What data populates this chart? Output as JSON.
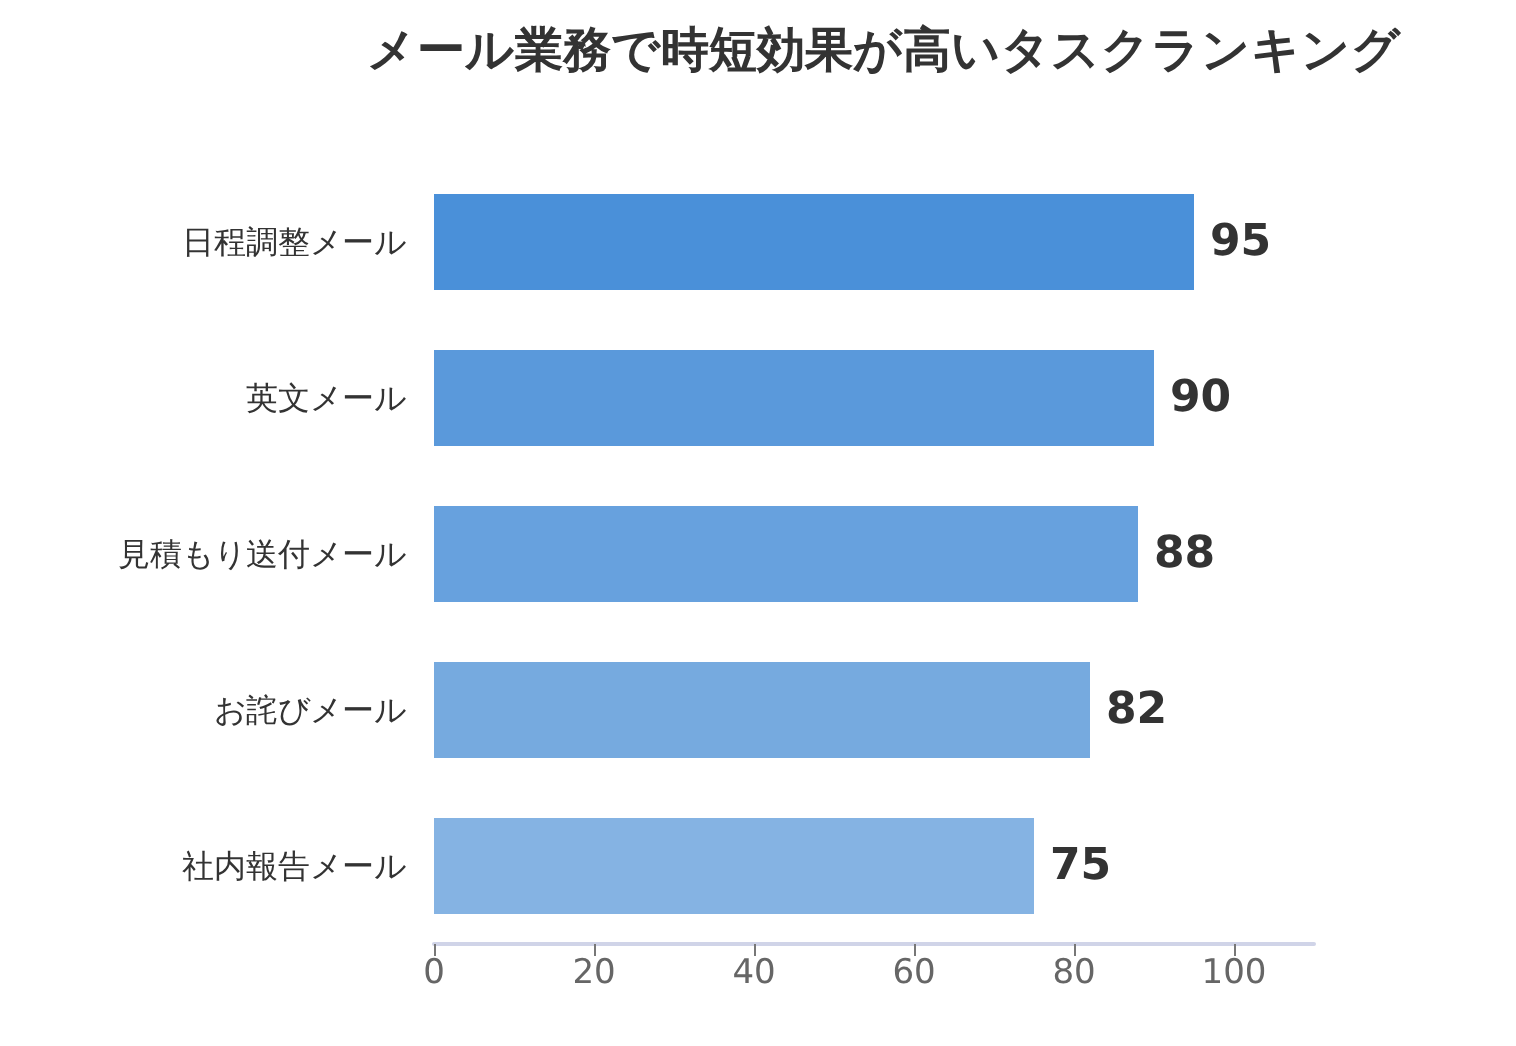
{
  "chart_data": {
    "type": "bar",
    "orientation": "horizontal",
    "title": "メール業務で時短効果が高いタスクランキング",
    "categories": [
      "日程調整メール",
      "英文メール",
      "見積もり送付メール",
      "お詫びメール",
      "社内報告メール"
    ],
    "values": [
      95,
      90,
      88,
      82,
      75
    ],
    "colors": [
      "#4a90d9",
      "#5a99db",
      "#67a1de",
      "#76aadf",
      "#85b3e3"
    ],
    "xlim": [
      0,
      110
    ],
    "xticks": [
      0,
      20,
      40,
      60,
      80,
      100
    ],
    "grid": false,
    "data_labels": true
  }
}
